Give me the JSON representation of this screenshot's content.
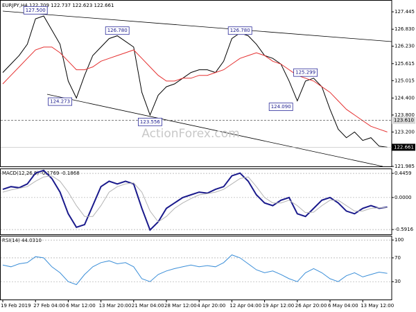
{
  "chart_data": [
    {
      "type": "line",
      "title": "EURJPY,H4 122.709 122.737 122.623 122.661",
      "categories": [
        "19 Feb 2019",
        null,
        null,
        null,
        "27 Feb 04:00",
        null,
        null,
        null,
        "6 Mar 12:00",
        null,
        null,
        null,
        "13 Mar 20:00",
        null,
        null,
        null,
        "21 Mar 04:00",
        null,
        null,
        null,
        "28 Mar 12:00",
        null,
        null,
        null,
        "4 Apr 20:00",
        null,
        null,
        null,
        "12 Apr 04:00",
        null,
        null,
        null,
        "19 Apr 12:00",
        null,
        null,
        null,
        "26 Apr 20:00",
        null,
        null,
        null,
        "6 May 04:00",
        null,
        null,
        null,
        "13 May 12:00",
        null,
        null,
        null
      ],
      "series": [
        {
          "color": "#000000",
          "values": [
            125.3,
            125.6,
            125.9,
            126.3,
            127.2,
            127.3,
            126.8,
            126.3,
            125.0,
            124.4,
            125.2,
            125.9,
            126.2,
            126.5,
            126.6,
            126.4,
            126.2,
            124.6,
            123.8,
            124.5,
            124.8,
            124.9,
            125.1,
            125.3,
            125.4,
            125.4,
            125.3,
            125.7,
            126.5,
            126.7,
            126.6,
            126.3,
            125.9,
            125.8,
            125.6,
            125.0,
            124.3,
            125.0,
            125.1,
            124.8,
            124.0,
            123.3,
            123.0,
            123.2,
            122.9,
            123.0,
            122.7,
            122.661
          ]
        },
        {
          "color": "#e53030",
          "values": [
            124.9,
            125.2,
            125.5,
            125.8,
            126.1,
            126.2,
            126.2,
            126.0,
            125.7,
            125.4,
            125.4,
            125.5,
            125.7,
            125.8,
            125.9,
            126.0,
            126.1,
            125.8,
            125.5,
            125.2,
            125.0,
            125.0,
            125.1,
            125.1,
            125.2,
            125.2,
            125.3,
            125.4,
            125.6,
            125.8,
            125.9,
            126.0,
            125.9,
            125.7,
            125.6,
            125.4,
            125.2,
            125.1,
            125.0,
            124.8,
            124.6,
            124.3,
            124.0,
            123.8,
            123.6,
            123.4,
            123.3,
            123.2
          ]
        }
      ],
      "ylim": [
        121.985,
        127.74
      ],
      "yticks": [
        127.445,
        {
          "value": 126.83,
          "label": "126.830"
        },
        {
          "value": 126.23,
          "label": "126.230"
        },
        125.615,
        125.015,
        {
          "value": 124.4,
          "label": "124.400"
        },
        {
          "value": 123.8,
          "label": "123.800"
        },
        {
          "value": 123.2,
          "label": "123.200"
        },
        121.985
      ],
      "hline": {
        "value": 123.61,
        "label": "123.610"
      },
      "last": {
        "value": 122.661,
        "label": "122.661"
      },
      "annotations": [
        {
          "x": 4,
          "value": 127.5,
          "label": "127.500"
        },
        {
          "x": 14,
          "value": 126.78,
          "label": "126.780"
        },
        {
          "x": 7,
          "value": 124.273,
          "label": "124.273"
        },
        {
          "x": 18,
          "value": 123.556,
          "label": "123.556"
        },
        {
          "x": 29,
          "value": 126.78,
          "label": "126.780"
        },
        {
          "x": 37,
          "value": 125.299,
          "label": "125.299"
        },
        {
          "x": 34,
          "value": 124.09,
          "label": "124.090"
        }
      ],
      "watermark": "ActionForex.com"
    },
    {
      "type": "line",
      "title": "MACD(12,26,9) -0.1769 -0.1868",
      "series": [
        {
          "color": "#1a1a8c",
          "values": [
            0.15,
            0.2,
            0.18,
            0.25,
            0.45,
            0.5,
            0.35,
            0.1,
            -0.3,
            -0.55,
            -0.5,
            -0.15,
            0.2,
            0.3,
            0.25,
            0.3,
            0.25,
            -0.2,
            -0.6,
            -0.45,
            -0.2,
            -0.1,
            0.0,
            0.05,
            0.1,
            0.08,
            0.15,
            0.2,
            0.4,
            0.45,
            0.3,
            0.05,
            -0.1,
            -0.15,
            -0.05,
            0.0,
            -0.3,
            -0.35,
            -0.2,
            -0.05,
            0.0,
            -0.1,
            -0.25,
            -0.3,
            -0.2,
            -0.15,
            -0.2,
            -0.1769
          ]
        },
        {
          "color": "#b4b4b4",
          "values": [
            0.1,
            0.14,
            0.17,
            0.2,
            0.3,
            0.38,
            0.4,
            0.3,
            0.1,
            -0.15,
            -0.35,
            -0.35,
            -0.15,
            0.1,
            0.2,
            0.25,
            0.27,
            0.1,
            -0.25,
            -0.45,
            -0.35,
            -0.2,
            -0.1,
            -0.02,
            0.05,
            0.07,
            0.1,
            0.15,
            0.25,
            0.35,
            0.38,
            0.2,
            0.0,
            -0.1,
            -0.1,
            -0.05,
            -0.15,
            -0.28,
            -0.27,
            -0.15,
            -0.05,
            -0.05,
            -0.15,
            -0.25,
            -0.25,
            -0.2,
            -0.19,
            -0.1868
          ]
        }
      ],
      "ylim": [
        -0.68,
        0.523
      ],
      "yticks": [
        0.4459,
        {
          "value": 0,
          "label": "0.0000"
        },
        -0.5916
      ]
    },
    {
      "type": "line",
      "title": "RSI(14) 44.0310",
      "series": [
        {
          "color": "#3a8ed8",
          "values": [
            58,
            55,
            60,
            62,
            72,
            70,
            55,
            45,
            30,
            25,
            42,
            55,
            62,
            65,
            60,
            62,
            55,
            35,
            30,
            42,
            48,
            52,
            55,
            58,
            55,
            57,
            55,
            62,
            75,
            70,
            60,
            50,
            45,
            48,
            42,
            35,
            30,
            45,
            52,
            45,
            35,
            30,
            40,
            45,
            38,
            42,
            46,
            44.031
          ]
        }
      ],
      "ylim": [
        0,
        106
      ],
      "yticks": [
        100,
        70,
        30
      ]
    }
  ]
}
